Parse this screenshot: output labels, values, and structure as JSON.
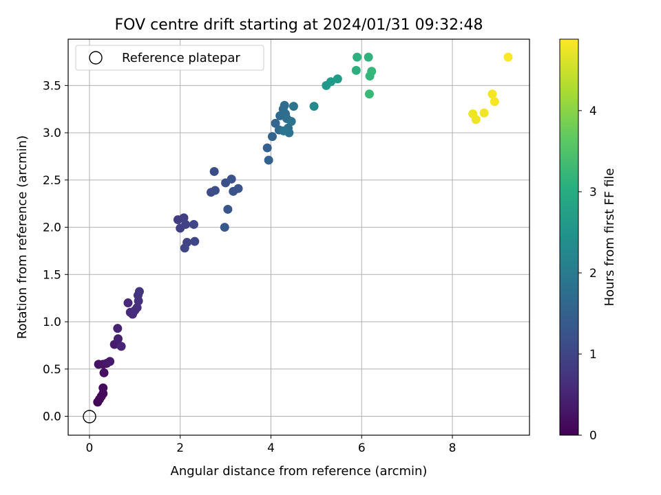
{
  "chart_data": {
    "type": "scatter",
    "title": "FOV centre drift starting at 2024/01/31 09:32:48",
    "xlabel": "Angular distance from reference (arcmin)",
    "ylabel": "Rotation from reference (arcmin)",
    "xlim": [
      -0.47,
      9.7
    ],
    "ylim": [
      -0.2,
      3.99
    ],
    "x_ticks": [
      0,
      2,
      4,
      6,
      8
    ],
    "y_ticks": [
      0.0,
      0.5,
      1.0,
      1.5,
      2.0,
      2.5,
      3.0,
      3.5
    ],
    "grid": true,
    "colormap": "viridis",
    "colorbar": {
      "label": "Hours from first FF file",
      "range": [
        0,
        4.88
      ],
      "ticks": [
        0,
        1,
        2,
        3,
        4
      ]
    },
    "legend": {
      "position": "top-left",
      "entries": [
        "Reference platepar"
      ]
    },
    "reference_point": {
      "x": 0,
      "y": 0
    },
    "points": [
      {
        "x": 0.18,
        "y": 0.15,
        "c": 0.02
      },
      {
        "x": 0.22,
        "y": 0.18,
        "c": 0.05
      },
      {
        "x": 0.26,
        "y": 0.21,
        "c": 0.08
      },
      {
        "x": 0.3,
        "y": 0.24,
        "c": 0.11
      },
      {
        "x": 0.3,
        "y": 0.3,
        "c": 0.14
      },
      {
        "x": 0.32,
        "y": 0.46,
        "c": 0.18
      },
      {
        "x": 0.2,
        "y": 0.55,
        "c": 0.22
      },
      {
        "x": 0.3,
        "y": 0.55,
        "c": 0.26
      },
      {
        "x": 0.38,
        "y": 0.56,
        "c": 0.3
      },
      {
        "x": 0.45,
        "y": 0.58,
        "c": 0.34
      },
      {
        "x": 0.55,
        "y": 0.76,
        "c": 0.38
      },
      {
        "x": 0.63,
        "y": 0.82,
        "c": 0.42
      },
      {
        "x": 0.62,
        "y": 0.93,
        "c": 0.46
      },
      {
        "x": 0.7,
        "y": 0.74,
        "c": 0.5
      },
      {
        "x": 0.85,
        "y": 1.2,
        "c": 0.54
      },
      {
        "x": 0.9,
        "y": 1.1,
        "c": 0.57
      },
      {
        "x": 0.95,
        "y": 1.08,
        "c": 0.6
      },
      {
        "x": 1.0,
        "y": 1.12,
        "c": 0.63
      },
      {
        "x": 1.05,
        "y": 1.15,
        "c": 0.66
      },
      {
        "x": 1.08,
        "y": 1.22,
        "c": 0.69
      },
      {
        "x": 1.07,
        "y": 1.28,
        "c": 0.72
      },
      {
        "x": 1.1,
        "y": 1.32,
        "c": 0.75
      },
      {
        "x": 1.95,
        "y": 2.08,
        "c": 0.86
      },
      {
        "x": 2.08,
        "y": 2.1,
        "c": 0.89
      },
      {
        "x": 2.0,
        "y": 1.99,
        "c": 0.92
      },
      {
        "x": 2.12,
        "y": 2.03,
        "c": 0.95
      },
      {
        "x": 2.15,
        "y": 1.84,
        "c": 0.98
      },
      {
        "x": 2.1,
        "y": 1.78,
        "c": 1.0
      },
      {
        "x": 2.32,
        "y": 1.85,
        "c": 1.02
      },
      {
        "x": 2.3,
        "y": 2.03,
        "c": 1.04
      },
      {
        "x": 2.68,
        "y": 2.37,
        "c": 1.1
      },
      {
        "x": 2.77,
        "y": 2.39,
        "c": 1.13
      },
      {
        "x": 2.75,
        "y": 2.59,
        "c": 1.16
      },
      {
        "x": 3.0,
        "y": 2.47,
        "c": 1.19
      },
      {
        "x": 3.13,
        "y": 2.51,
        "c": 1.22
      },
      {
        "x": 3.17,
        "y": 2.38,
        "c": 1.25
      },
      {
        "x": 3.28,
        "y": 2.41,
        "c": 1.28
      },
      {
        "x": 3.05,
        "y": 2.19,
        "c": 1.31
      },
      {
        "x": 2.98,
        "y": 2.0,
        "c": 1.34
      },
      {
        "x": 3.92,
        "y": 2.84,
        "c": 1.5
      },
      {
        "x": 3.95,
        "y": 2.71,
        "c": 1.53
      },
      {
        "x": 4.03,
        "y": 2.96,
        "c": 1.56
      },
      {
        "x": 4.1,
        "y": 3.1,
        "c": 1.59
      },
      {
        "x": 4.18,
        "y": 3.03,
        "c": 1.62
      },
      {
        "x": 4.2,
        "y": 3.18,
        "c": 1.65
      },
      {
        "x": 4.27,
        "y": 3.25,
        "c": 1.68
      },
      {
        "x": 4.3,
        "y": 3.29,
        "c": 1.71
      },
      {
        "x": 4.32,
        "y": 3.2,
        "c": 1.74
      },
      {
        "x": 4.35,
        "y": 3.15,
        "c": 1.77
      },
      {
        "x": 4.38,
        "y": 3.05,
        "c": 1.8
      },
      {
        "x": 4.4,
        "y": 3.0,
        "c": 1.83
      },
      {
        "x": 4.45,
        "y": 3.12,
        "c": 1.86
      },
      {
        "x": 4.5,
        "y": 3.28,
        "c": 1.89
      },
      {
        "x": 4.28,
        "y": 3.02,
        "c": 1.92
      },
      {
        "x": 4.95,
        "y": 3.28,
        "c": 2.3
      },
      {
        "x": 5.22,
        "y": 3.5,
        "c": 2.6
      },
      {
        "x": 5.32,
        "y": 3.54,
        "c": 2.65
      },
      {
        "x": 5.47,
        "y": 3.57,
        "c": 2.7
      },
      {
        "x": 5.88,
        "y": 3.66,
        "c": 3.05
      },
      {
        "x": 5.9,
        "y": 3.8,
        "c": 3.1
      },
      {
        "x": 6.15,
        "y": 3.8,
        "c": 3.15
      },
      {
        "x": 6.18,
        "y": 3.6,
        "c": 3.2
      },
      {
        "x": 6.22,
        "y": 3.65,
        "c": 3.25
      },
      {
        "x": 6.17,
        "y": 3.41,
        "c": 3.3
      },
      {
        "x": 8.45,
        "y": 3.2,
        "c": 4.75
      },
      {
        "x": 8.52,
        "y": 3.14,
        "c": 4.77
      },
      {
        "x": 8.7,
        "y": 3.21,
        "c": 4.79
      },
      {
        "x": 8.88,
        "y": 3.41,
        "c": 4.81
      },
      {
        "x": 8.93,
        "y": 3.33,
        "c": 4.83
      },
      {
        "x": 9.23,
        "y": 3.8,
        "c": 4.86
      }
    ]
  }
}
